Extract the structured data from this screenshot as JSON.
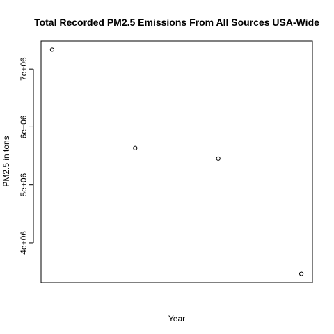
{
  "chart_data": {
    "type": "scatter",
    "title": "Total Recorded PM2.5 Emissions From All Sources USA-Wide",
    "xlabel": "Year",
    "ylabel": "PM2.5 in tons",
    "x": [
      1999,
      2002,
      2005,
      2008
    ],
    "y": [
      7332967,
      5635780,
      5454703,
      3464206
    ],
    "xlim": [
      1998.6,
      2008.4
    ],
    "ylim": [
      3314651,
      7482522
    ],
    "y_ticks": [
      4000000,
      5000000,
      6000000,
      7000000
    ],
    "y_tick_labels": [
      "4e+06",
      "5e+06",
      "6e+06",
      "7e+06"
    ],
    "x_ticks_shown": false,
    "grid": false,
    "legend": "none",
    "marker": "open-circle",
    "colors": {
      "marker": "#000000",
      "axis": "#000000",
      "background": "#ffffff"
    }
  }
}
